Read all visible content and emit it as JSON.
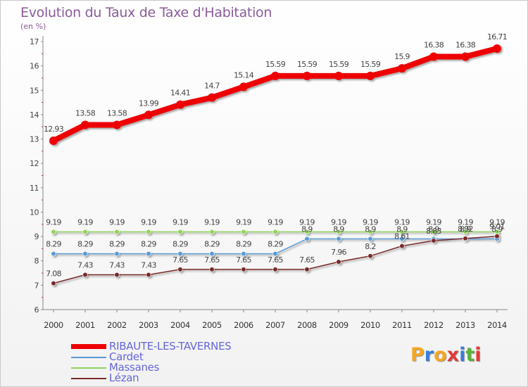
{
  "title": "Evolution du Taux de Taxe d'Habitation",
  "unit": "(en %)",
  "logo": [
    "P",
    "r",
    "o",
    "x",
    "i",
    "t",
    "i"
  ],
  "logo_colors": [
    "#f5a623",
    "#3a7fd5",
    "#f5a623",
    "#e03b3b",
    "#3a7fd5",
    "#59b23a",
    "#e03b3b"
  ],
  "chart_data": {
    "type": "line",
    "categories": [
      "2000",
      "2001",
      "2002",
      "2003",
      "2004",
      "2005",
      "2006",
      "2007",
      "2008",
      "2009",
      "2010",
      "2011",
      "2012",
      "2013",
      "2014"
    ],
    "ylim": [
      6,
      17
    ],
    "yticks": [
      "6",
      "7",
      "8",
      "9",
      "10",
      "11",
      "12",
      "13",
      "14",
      "15",
      "16",
      "17"
    ],
    "grid": false,
    "legend_position": "bottom-left",
    "series": [
      {
        "name": "RIBAUTE-LES-TAVERNES",
        "color": "#ee0000",
        "values": [
          12.93,
          13.58,
          13.58,
          13.99,
          14.41,
          14.7,
          15.14,
          15.59,
          15.59,
          15.59,
          15.59,
          15.9,
          16.38,
          16.38,
          16.71
        ],
        "labels": [
          "12.93",
          "13.58",
          "13.58",
          "13.99",
          "14.41",
          "14.7",
          "15.14",
          "15.59",
          "15.59",
          "15.59",
          "15.59",
          "15.9",
          "16.38",
          "16.38",
          "16.71"
        ]
      },
      {
        "name": "Cardet",
        "color": "#5a9ad5",
        "values": [
          8.29,
          8.29,
          8.29,
          8.29,
          8.29,
          8.29,
          8.29,
          8.29,
          8.9,
          8.9,
          8.9,
          8.9,
          8.9,
          8.9,
          8.9
        ],
        "labels": [
          "8.29",
          "8.29",
          "8.29",
          "8.29",
          "8.29",
          "8.29",
          "8.29",
          "8.29",
          "8.9",
          "8.9",
          "8.9",
          "8.9",
          "8.9",
          "8.9",
          "8.9"
        ]
      },
      {
        "name": "Massanes",
        "color": "#8fd35a",
        "values": [
          9.19,
          9.19,
          9.19,
          9.19,
          9.19,
          9.19,
          9.19,
          9.19,
          9.19,
          9.19,
          9.19,
          9.19,
          9.19,
          9.19,
          9.19
        ],
        "labels": [
          "9.19",
          "9.19",
          "9.19",
          "9.19",
          "9.19",
          "9.19",
          "9.19",
          "9.19",
          "9.19",
          "9.19",
          "9.19",
          "9.19",
          "9.19",
          "9.19",
          "9.19"
        ]
      },
      {
        "name": "Lézan",
        "color": "#7a2a2a",
        "values": [
          7.08,
          7.43,
          7.43,
          7.43,
          7.65,
          7.65,
          7.65,
          7.65,
          7.65,
          7.96,
          8.2,
          8.61,
          8.83,
          8.92,
          9.01
        ],
        "labels": [
          "7.08",
          "7.43",
          "7.43",
          "7.43",
          "7.65",
          "7.65",
          "7.65",
          "7.65",
          "7.65",
          "7.96",
          "8.2",
          "8.61",
          "8.83",
          "8.92",
          "9.01"
        ]
      }
    ]
  }
}
